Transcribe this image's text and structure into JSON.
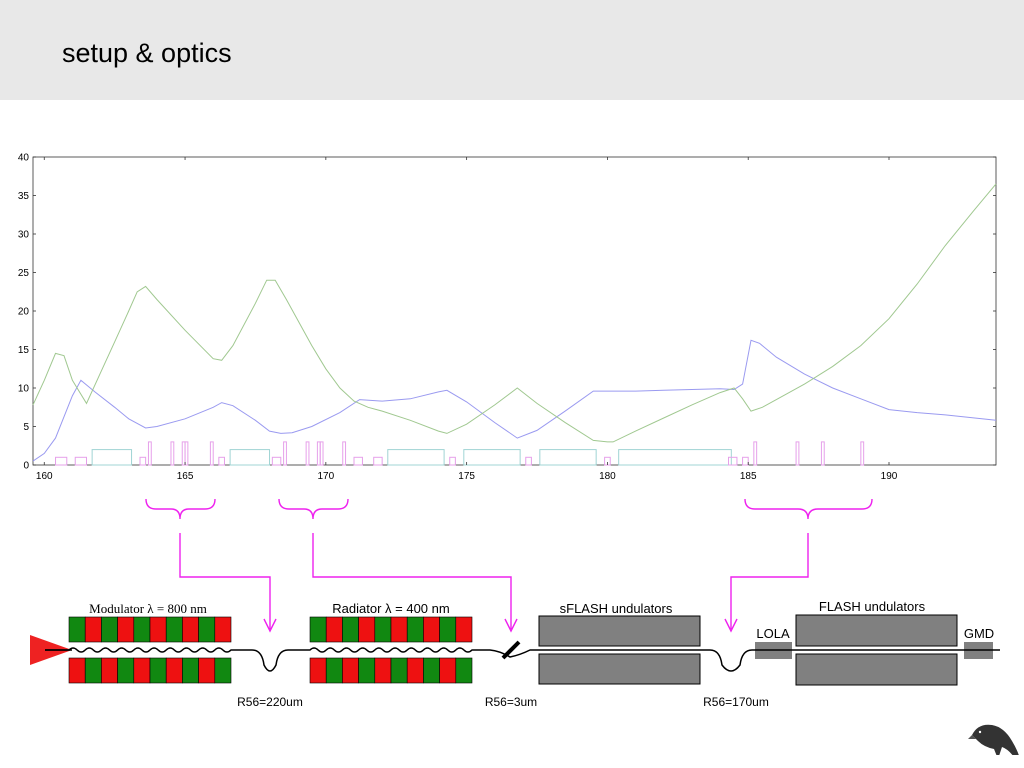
{
  "slide": {
    "title": "setup & optics"
  },
  "chart_data": {
    "type": "line",
    "title": "",
    "xlabel": "",
    "ylabel": "",
    "xlim": [
      159.6,
      193.8
    ],
    "ylim": [
      0,
      40
    ],
    "x_ticks": [
      "160",
      "165",
      "170",
      "175",
      "180",
      "185",
      "190"
    ],
    "y_ticks": [
      "0",
      "5",
      "10",
      "15",
      "20",
      "25",
      "30",
      "35",
      "40"
    ],
    "grid": false,
    "series": [
      {
        "color": "#9a9af0",
        "points": [
          [
            159.6,
            0.5
          ],
          [
            160.0,
            1.5
          ],
          [
            160.4,
            3.5
          ],
          [
            161.0,
            9.0
          ],
          [
            161.3,
            11.0
          ],
          [
            161.8,
            9.5
          ],
          [
            162.5,
            7.5
          ],
          [
            163.0,
            6.0
          ],
          [
            163.6,
            4.8
          ],
          [
            164.0,
            5.0
          ],
          [
            165.0,
            6.0
          ],
          [
            166.0,
            7.5
          ],
          [
            166.3,
            8.1
          ],
          [
            166.7,
            7.7
          ],
          [
            167.5,
            5.8
          ],
          [
            168.0,
            4.4
          ],
          [
            168.4,
            4.1
          ],
          [
            168.8,
            4.2
          ],
          [
            169.5,
            5.0
          ],
          [
            170.5,
            6.8
          ],
          [
            171.2,
            8.5
          ],
          [
            172.0,
            8.3
          ],
          [
            173.0,
            8.6
          ],
          [
            174.0,
            9.5
          ],
          [
            174.3,
            9.7
          ],
          [
            175.0,
            8.2
          ],
          [
            176.0,
            5.5
          ],
          [
            176.8,
            3.5
          ],
          [
            177.5,
            4.5
          ],
          [
            178.5,
            7.0
          ],
          [
            179.5,
            9.6
          ],
          [
            180.0,
            9.6
          ],
          [
            181.0,
            9.6
          ],
          [
            182.0,
            9.7
          ],
          [
            183.0,
            9.8
          ],
          [
            184.0,
            9.9
          ],
          [
            184.5,
            9.8
          ],
          [
            184.8,
            10.5
          ],
          [
            185.1,
            16.2
          ],
          [
            185.4,
            15.8
          ],
          [
            186.0,
            14.0
          ],
          [
            187.0,
            11.8
          ],
          [
            188.0,
            10.0
          ],
          [
            189.0,
            8.6
          ],
          [
            190.0,
            7.2
          ],
          [
            191.0,
            6.8
          ],
          [
            192.0,
            6.5
          ],
          [
            193.8,
            5.8
          ]
        ]
      },
      {
        "color": "#a0c890",
        "points": [
          [
            159.6,
            7.8
          ],
          [
            160.0,
            11.0
          ],
          [
            160.4,
            14.5
          ],
          [
            160.7,
            14.2
          ],
          [
            161.0,
            11.0
          ],
          [
            161.5,
            8.0
          ],
          [
            162.0,
            12.0
          ],
          [
            162.5,
            16.0
          ],
          [
            163.0,
            20.0
          ],
          [
            163.3,
            22.5
          ],
          [
            163.6,
            23.2
          ],
          [
            164.0,
            21.5
          ],
          [
            165.0,
            17.5
          ],
          [
            166.0,
            13.8
          ],
          [
            166.3,
            13.6
          ],
          [
            166.7,
            15.5
          ],
          [
            167.5,
            21.0
          ],
          [
            167.9,
            24.0
          ],
          [
            168.2,
            24.0
          ],
          [
            168.6,
            21.5
          ],
          [
            169.5,
            15.5
          ],
          [
            170.0,
            12.5
          ],
          [
            170.5,
            10.0
          ],
          [
            171.0,
            8.3
          ],
          [
            171.5,
            7.5
          ],
          [
            172.0,
            7.0
          ],
          [
            173.0,
            5.8
          ],
          [
            174.0,
            4.4
          ],
          [
            174.3,
            4.1
          ],
          [
            175.0,
            5.3
          ],
          [
            176.0,
            7.8
          ],
          [
            176.8,
            10.0
          ],
          [
            177.5,
            8.0
          ],
          [
            178.5,
            5.5
          ],
          [
            179.5,
            3.2
          ],
          [
            180.0,
            3.0
          ],
          [
            180.2,
            3.0
          ],
          [
            181.0,
            4.4
          ],
          [
            182.0,
            6.1
          ],
          [
            183.0,
            7.8
          ],
          [
            184.0,
            9.4
          ],
          [
            184.5,
            10.0
          ],
          [
            184.8,
            8.6
          ],
          [
            185.1,
            7.0
          ],
          [
            185.5,
            7.5
          ],
          [
            186.0,
            8.5
          ],
          [
            187.0,
            10.5
          ],
          [
            188.0,
            12.8
          ],
          [
            189.0,
            15.5
          ],
          [
            190.0,
            19.0
          ],
          [
            191.0,
            23.5
          ],
          [
            192.0,
            28.5
          ],
          [
            193.0,
            33.0
          ],
          [
            193.8,
            36.5
          ]
        ]
      }
    ],
    "elements": [
      {
        "color": "#e6a0ea",
        "x": 160.4,
        "w": 0.4,
        "h": 1.0
      },
      {
        "color": "#e6a0ea",
        "x": 161.1,
        "w": 0.4,
        "h": 1.0
      },
      {
        "color": "#a0d4d4",
        "x": 161.7,
        "w": 1.4,
        "h": 2.0
      },
      {
        "color": "#e6a0ea",
        "x": 163.4,
        "w": 0.2,
        "h": 1.0
      },
      {
        "color": "#e6a0ea",
        "x": 163.7,
        "w": 0.1,
        "h": 3.0
      },
      {
        "color": "#e6a0ea",
        "x": 164.5,
        "w": 0.1,
        "h": 3.0
      },
      {
        "color": "#e6a0ea",
        "x": 164.9,
        "w": 0.1,
        "h": 3.0
      },
      {
        "color": "#e6a0ea",
        "x": 165.0,
        "w": 0.1,
        "h": 3.0
      },
      {
        "color": "#e6a0ea",
        "x": 165.9,
        "w": 0.1,
        "h": 3.0
      },
      {
        "color": "#e6a0ea",
        "x": 166.2,
        "w": 0.2,
        "h": 1.0
      },
      {
        "color": "#a0d4d4",
        "x": 166.6,
        "w": 1.4,
        "h": 2.0
      },
      {
        "color": "#e6a0ea",
        "x": 168.1,
        "w": 0.3,
        "h": 1.0
      },
      {
        "color": "#e6a0ea",
        "x": 168.5,
        "w": 0.1,
        "h": 3.0
      },
      {
        "color": "#e6a0ea",
        "x": 169.3,
        "w": 0.1,
        "h": 3.0
      },
      {
        "color": "#e6a0ea",
        "x": 169.7,
        "w": 0.1,
        "h": 3.0
      },
      {
        "color": "#e6a0ea",
        "x": 169.8,
        "w": 0.1,
        "h": 3.0
      },
      {
        "color": "#e6a0ea",
        "x": 170.6,
        "w": 0.1,
        "h": 3.0
      },
      {
        "color": "#e6a0ea",
        "x": 171.0,
        "w": 0.3,
        "h": 1.0
      },
      {
        "color": "#e6a0ea",
        "x": 171.7,
        "w": 0.3,
        "h": 1.0
      },
      {
        "color": "#a0d4d4",
        "x": 172.2,
        "w": 2.0,
        "h": 2.0
      },
      {
        "color": "#e6a0ea",
        "x": 174.4,
        "w": 0.2,
        "h": 1.0
      },
      {
        "color": "#a0d4d4",
        "x": 174.9,
        "w": 2.0,
        "h": 2.0
      },
      {
        "color": "#e6a0ea",
        "x": 177.1,
        "w": 0.2,
        "h": 1.0
      },
      {
        "color": "#a0d4d4",
        "x": 177.6,
        "w": 2.0,
        "h": 2.0
      },
      {
        "color": "#e6a0ea",
        "x": 179.9,
        "w": 0.2,
        "h": 1.0
      },
      {
        "color": "#a0d4d4",
        "x": 180.4,
        "w": 4.0,
        "h": 2.0
      },
      {
        "color": "#e6a0ea",
        "x": 184.3,
        "w": 0.3,
        "h": 1.0
      },
      {
        "color": "#e6a0ea",
        "x": 184.8,
        "w": 0.2,
        "h": 1.0
      },
      {
        "color": "#e6a0ea",
        "x": 185.2,
        "w": 0.1,
        "h": 3.0
      },
      {
        "color": "#e6a0ea",
        "x": 186.7,
        "w": 0.1,
        "h": 3.0
      },
      {
        "color": "#e6a0ea",
        "x": 187.6,
        "w": 0.1,
        "h": 3.0
      },
      {
        "color": "#e6a0ea",
        "x": 189.0,
        "w": 0.1,
        "h": 3.0
      }
    ]
  },
  "schematic": {
    "labels": {
      "modulator": "Modulator λ = 800 nm",
      "radiator": "Radiator λ = 400 nm",
      "sflash": "sFLASH undulators",
      "flash": "FLASH undulators",
      "lola": "LOLA",
      "gmd": "GMD",
      "r56_1": "R56=220um",
      "r56_2": "R56=3um",
      "r56_3": "R56=170um"
    },
    "colors": {
      "red": "#ee1111",
      "green": "#118811",
      "gray": "#808080",
      "magenta": "#ee22ee"
    }
  }
}
